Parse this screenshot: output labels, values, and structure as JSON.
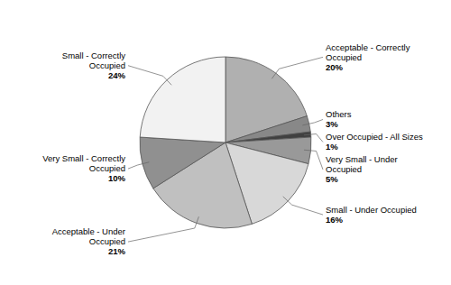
{
  "chart_data": {
    "type": "pie",
    "categories": [
      "Acceptable - Correctly\nOccupied",
      "Others",
      "Over Occupied - All Sizes",
      "Very Small - Under\nOccupied",
      "Small - Under Occupied",
      "Acceptable - Under\nOccupied",
      "Very Small - Correctly\nOccupied",
      "Small - Correctly\nOccupied"
    ],
    "values": [
      20,
      3,
      1,
      5,
      16,
      21,
      10,
      24
    ],
    "value_labels": [
      "20%",
      "3%",
      "1%",
      "5%",
      "16%",
      "21%",
      "10%",
      "24%"
    ],
    "colors": [
      "#b0b0b0",
      "#888888",
      "#404040",
      "#999999",
      "#d8d8d8",
      "#c0c0c0",
      "#909090",
      "#f2f2f2"
    ],
    "data_labels": true
  }
}
